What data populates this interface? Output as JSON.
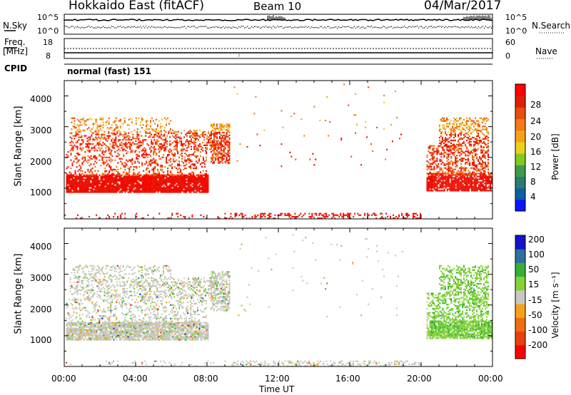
{
  "header": {
    "station": "Hokkaido East (fitACF)",
    "beam": "Beam 10",
    "date": "04/Mar/2017"
  },
  "noise_panel": {
    "left_label": "N.Sky",
    "right_label": "N.Search",
    "left_ticks": [
      "10^5",
      "10^0"
    ],
    "right_ticks": [
      "10^5",
      "10^0"
    ]
  },
  "freq_panel": {
    "left_label_1": "Freq.",
    "left_label_2": "[MHz]",
    "left_ticks": [
      "18",
      "8"
    ],
    "right_label": "Nave",
    "right_ticks": [
      "60",
      "0"
    ],
    "cpid_label": "CPID",
    "cpid_text": "normal (fast) 151"
  },
  "colors": {
    "power": [
      "#0a14ff",
      "#0c5fa0",
      "#2e7a6e",
      "#3d9a4e",
      "#84c820",
      "#e8d21c",
      "#f5a21a",
      "#f37a14",
      "#e84e0c",
      "#e01e08",
      "#ff0000"
    ],
    "velocity": [
      "#ff0000",
      "#e84010",
      "#f06e10",
      "#f5a21a",
      "#c8c8c0",
      "#84d23a",
      "#38b038",
      "#2e6fa0",
      "#1414c8"
    ]
  },
  "chart_data": [
    {
      "type": "heatmap",
      "name": "power",
      "ylabel": "Slant Range [km]",
      "yticks": [
        "1000",
        "2000",
        "3000",
        "4000"
      ],
      "colorbar_label": "Power [dB]",
      "colorbar_ticks": [
        "4",
        "8",
        "12",
        "16",
        "20",
        "24",
        "28"
      ],
      "colorbar_range": [
        0,
        32
      ]
    },
    {
      "type": "heatmap",
      "name": "velocity",
      "ylabel": "Slant Range [km]",
      "yticks": [
        "1000",
        "2000",
        "3000",
        "4000"
      ],
      "xlabel": "Time UT",
      "xticks": [
        "00:00",
        "04:00",
        "08:00",
        "12:00",
        "16:00",
        "20:00",
        "00:00"
      ],
      "colorbar_label": "Velocity [m s⁻¹]",
      "colorbar_ticks": [
        "-200",
        "-100",
        "-50",
        "-15",
        "15",
        "50",
        "100",
        "200"
      ]
    }
  ]
}
